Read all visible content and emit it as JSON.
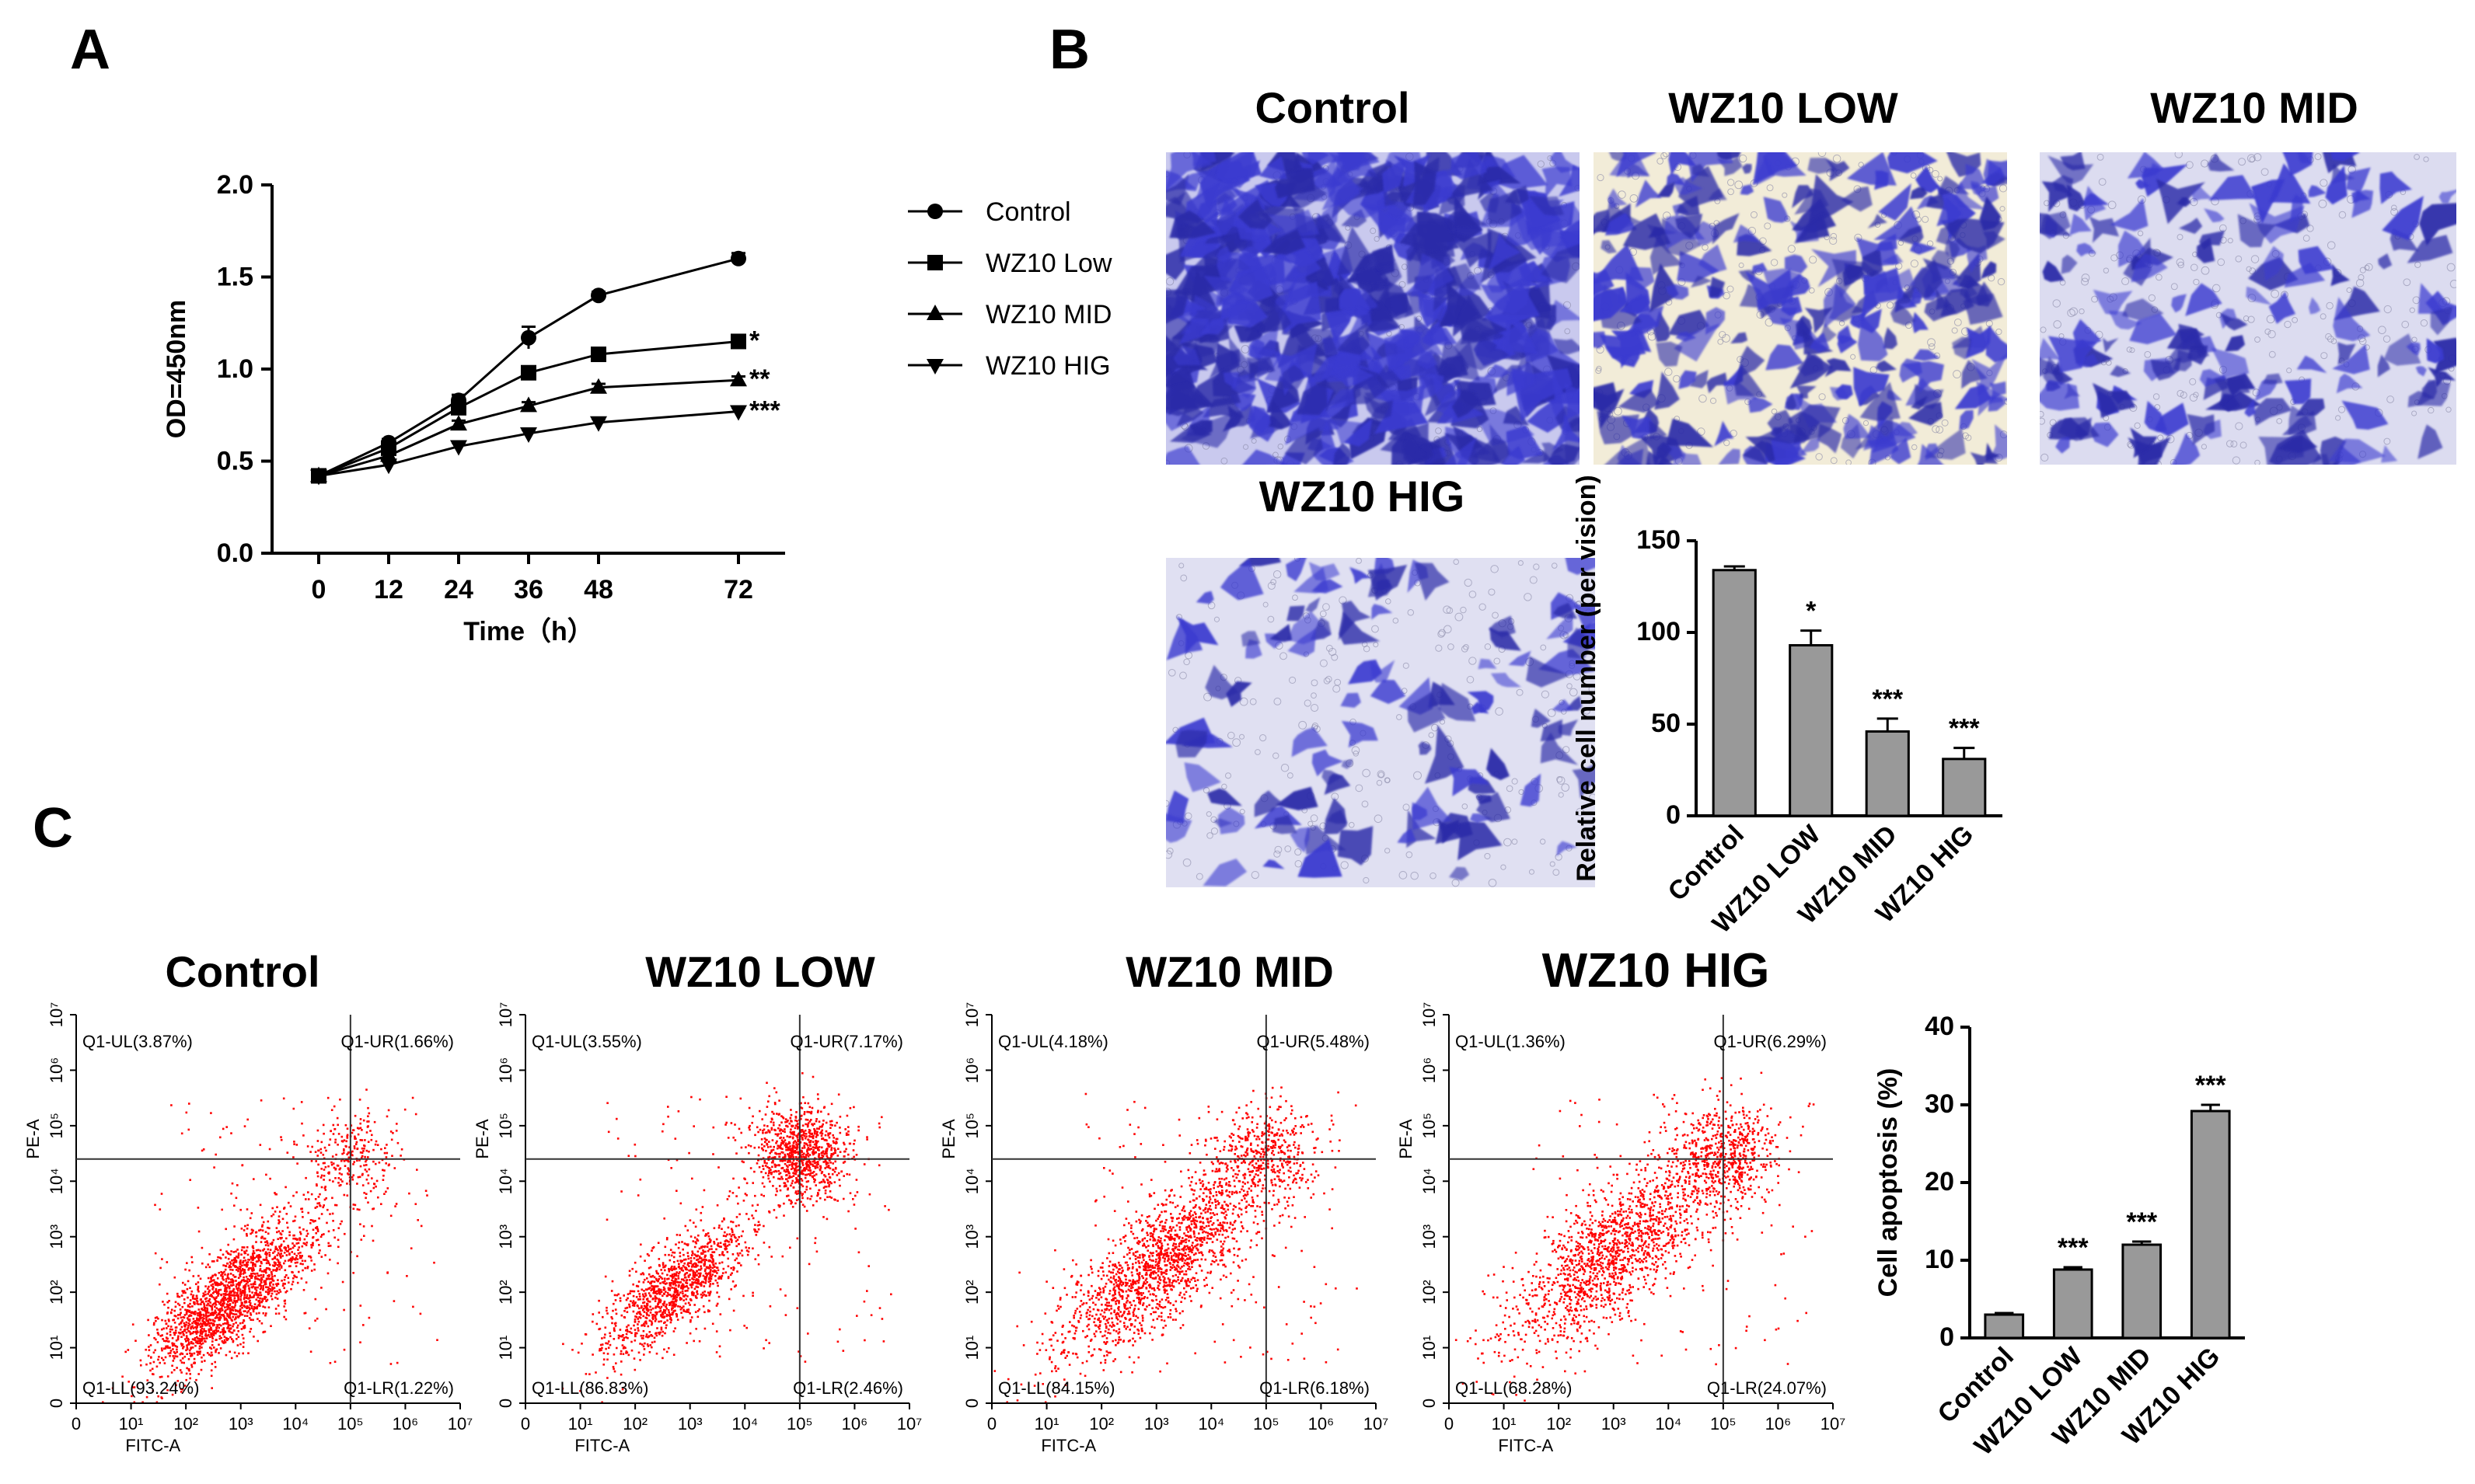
{
  "panels": {
    "a": "A",
    "b": "B",
    "c": "C"
  },
  "chart_data": [
    {
      "type": "line",
      "panel": "A",
      "xlabel": "Time（h）",
      "ylabel": "OD=450nm",
      "x": [
        0,
        12,
        24,
        36,
        48,
        72
      ],
      "xticks": [
        "0",
        "12",
        "24",
        "36",
        "48",
        "72"
      ],
      "yticks": [
        "0.0",
        "0.5",
        "1.0",
        "1.5",
        "2.0"
      ],
      "ylim": [
        0,
        2.0
      ],
      "legend_position": "right",
      "series": [
        {
          "name": "Control",
          "marker": "circle",
          "values": [
            0.42,
            0.6,
            0.83,
            1.17,
            1.4,
            1.6
          ],
          "err": [
            0.02,
            0.02,
            0.03,
            0.06,
            0.02,
            0.03
          ],
          "sig": ""
        },
        {
          "name": "WZ10 Low",
          "marker": "square",
          "values": [
            0.42,
            0.57,
            0.79,
            0.98,
            1.08,
            1.15
          ],
          "err": [
            0.02,
            0.02,
            0.02,
            0.02,
            0.02,
            0.02
          ],
          "sig": "*"
        },
        {
          "name": "WZ10 MID",
          "marker": "triangle-up",
          "values": [
            0.42,
            0.53,
            0.7,
            0.8,
            0.9,
            0.94
          ],
          "err": [
            0.02,
            0.02,
            0.02,
            0.02,
            0.02,
            0.02
          ],
          "sig": "**"
        },
        {
          "name": "WZ10 HIG",
          "marker": "triangle-down",
          "values": [
            0.42,
            0.48,
            0.58,
            0.65,
            0.71,
            0.77
          ],
          "err": [
            0.02,
            0.02,
            0.02,
            0.02,
            0.02,
            0.02
          ],
          "sig": "***"
        }
      ]
    },
    {
      "type": "bar",
      "panel": "B",
      "ylabel": "Relative cell number (per vision)",
      "categories": [
        "Control",
        "WZ10 LOW",
        "WZ10 MID",
        "WZ10 HIG"
      ],
      "values": [
        134,
        93,
        46,
        31
      ],
      "err": [
        2,
        8,
        7,
        6
      ],
      "sig": [
        "",
        "*",
        "***",
        "***"
      ],
      "yticks": [
        "0",
        "50",
        "100",
        "150"
      ],
      "ylim": [
        0,
        150
      ]
    },
    {
      "type": "bar",
      "panel": "C",
      "ylabel": "Cell apoptosis (%)",
      "categories": [
        "Control",
        "WZ10 LOW",
        "WZ10 MID",
        "WZ10 HIG"
      ],
      "values": [
        3.0,
        8.8,
        12.0,
        29.2
      ],
      "err": [
        0.2,
        0.3,
        0.4,
        0.8
      ],
      "sig": [
        "",
        "***",
        "***",
        "***"
      ],
      "yticks": [
        "0",
        "10",
        "20",
        "30",
        "40"
      ],
      "ylim": [
        0,
        40
      ]
    },
    {
      "type": "scatter",
      "panel": "C",
      "xlabel": "FITC-A",
      "ylabel": "PE-A",
      "xticks": [
        "0",
        "10¹",
        "10²",
        "10³",
        "10⁴",
        "10⁵",
        "10⁶",
        "10⁷"
      ],
      "yticks": [
        "0",
        "10¹",
        "10²",
        "10³",
        "10⁴",
        "10⁵",
        "10⁶",
        "10⁷"
      ],
      "plots": [
        {
          "title": "Control",
          "UL": "Q1-UL(3.87%)",
          "UR": "Q1-UR(1.66%)",
          "LL": "Q1-LL(93.24%)",
          "LR": "Q1-LR(1.22%)",
          "gate_x": 5.0,
          "gate_y": 4.4
        },
        {
          "title": "WZ10 LOW",
          "UL": "Q1-UL(3.55%)",
          "UR": "Q1-UR(7.17%)",
          "LL": "Q1-LL(86.83%)",
          "LR": "Q1-LR(2.46%)",
          "gate_x": 5.0,
          "gate_y": 4.4
        },
        {
          "title": "WZ10 MID",
          "UL": "Q1-UL(4.18%)",
          "UR": "Q1-UR(5.48%)",
          "LL": "Q1-LL(84.15%)",
          "LR": "Q1-LR(6.18%)",
          "gate_x": 5.0,
          "gate_y": 4.4
        },
        {
          "title": "WZ10 HIG",
          "UL": "Q1-UL(1.36%)",
          "UR": "Q1-UR(6.29%)",
          "LL": "Q1-LL(68.28%)",
          "LR": "Q1-LR(24.07%)",
          "gate_x": 5.0,
          "gate_y": 4.4
        }
      ]
    }
  ],
  "micrographs": [
    "Control",
    "WZ10 LOW",
    "WZ10 MID",
    "WZ10 HIG"
  ],
  "colors": {
    "bar": "#999999",
    "dots": "#ff0000",
    "stain": "#3a3ad0",
    "bg_light": "#dcdcf2"
  }
}
